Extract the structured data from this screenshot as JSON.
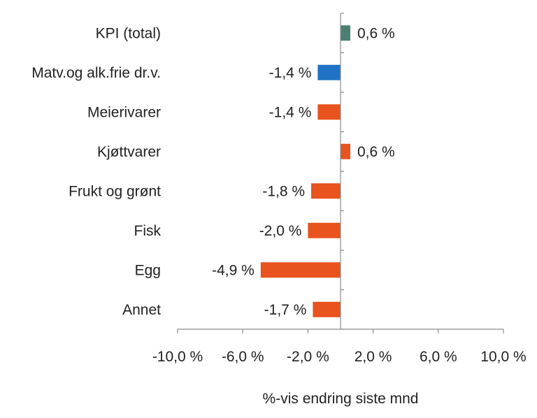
{
  "chart_data": {
    "type": "bar",
    "orientation": "horizontal",
    "categories": [
      "KPI (total)",
      "Matv.og alk.frie dr.v.",
      "Meierivarer",
      "Kjøttvarer",
      "Frukt og grønt",
      "Fisk",
      "Egg",
      "Annet"
    ],
    "values": [
      0.6,
      -1.4,
      -1.4,
      0.6,
      -1.8,
      -2.0,
      -4.9,
      -1.7
    ],
    "value_labels": [
      "0,6 %",
      "-1,4 %",
      "-1,4 %",
      "0,6 %",
      "-1,8 %",
      "-2,0 %",
      "-4,9 %",
      "-1,7 %"
    ],
    "bar_colors": [
      "#4a7f72",
      "#1f72c4",
      "#e8531e",
      "#e8531e",
      "#e8531e",
      "#e8531e",
      "#e8531e",
      "#e8531e"
    ],
    "xlabel": "%-vis endring siste mnd",
    "xlim": [
      -10,
      10
    ],
    "xticks": [
      -10,
      -6,
      -2,
      2,
      6,
      10
    ],
    "xtick_labels": [
      "-10,0 %",
      "-6,0 %",
      "-2,0 %",
      "2,0 %",
      "6,0 %",
      "10,0 %"
    ],
    "grid": false,
    "legend": "none"
  }
}
